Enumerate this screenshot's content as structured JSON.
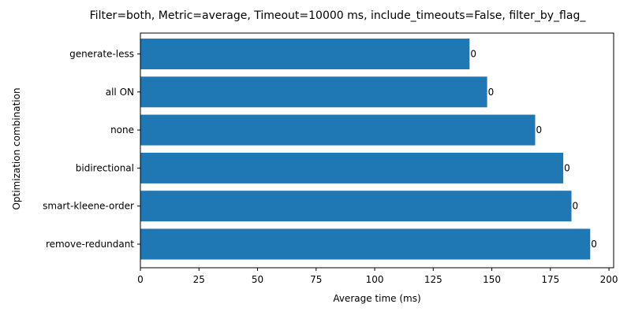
{
  "chart_data": {
    "type": "bar",
    "orientation": "horizontal",
    "title": "Filter=both, Metric=average, Timeout=10000 ms, include_timeouts=False, filter_by_flag_",
    "xlabel": "Average time (ms)",
    "ylabel": "Optimization combination",
    "categories": [
      "generate-less",
      "all ON",
      "none",
      "bidirectional",
      "smart-kleene-order",
      "remove-redundant"
    ],
    "values": [
      140.5,
      148,
      168.5,
      180.5,
      184,
      192
    ],
    "data_labels": [
      "0",
      "0",
      "0",
      "0",
      "0",
      "0"
    ],
    "xlim": [
      0,
      202
    ],
    "xticks": [
      0,
      25,
      50,
      75,
      100,
      125,
      150,
      175,
      200
    ],
    "bar_color": "#1f77b4",
    "grid": false,
    "legend": "none"
  }
}
